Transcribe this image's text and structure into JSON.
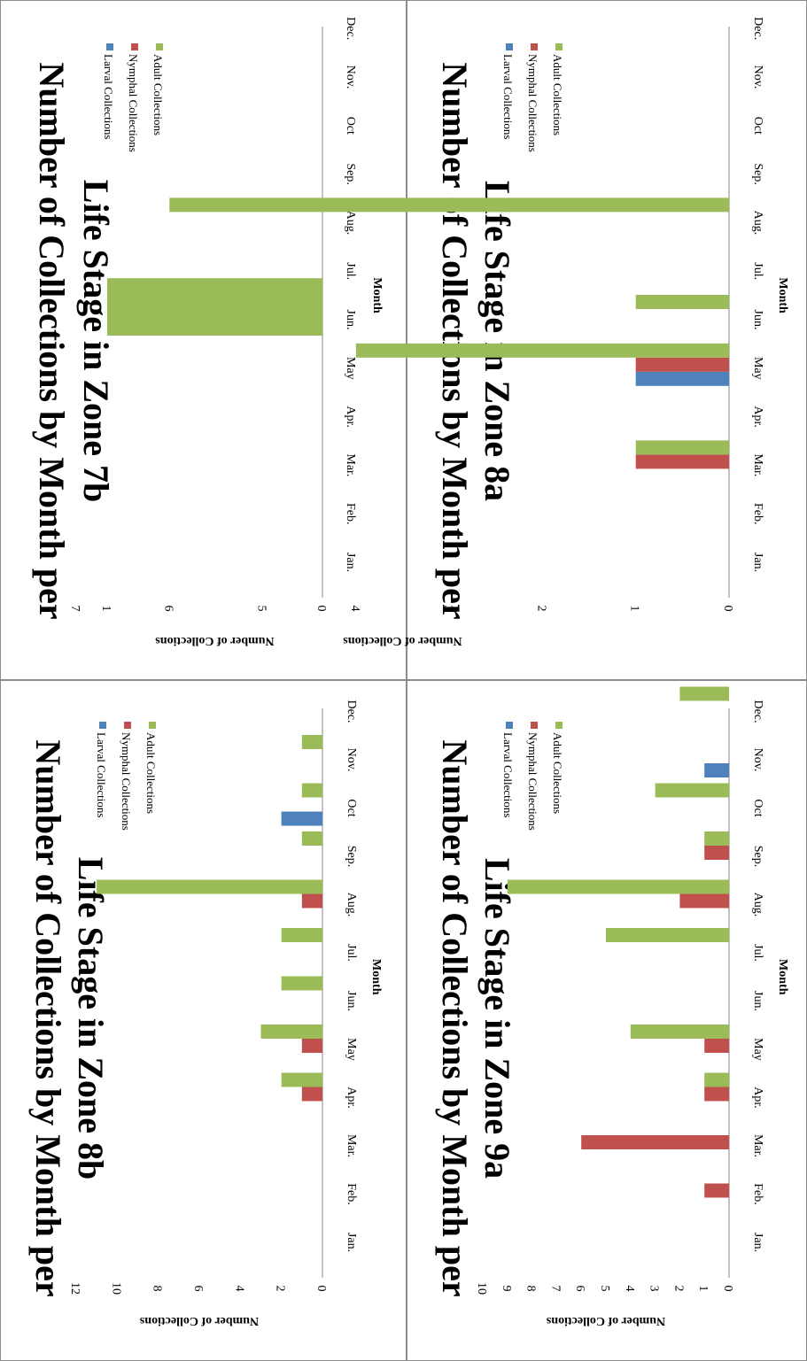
{
  "legend": {
    "larval": "Larval Collections",
    "nymphal": "Nymphal Collections",
    "adult": "Adult Collections"
  },
  "colors": {
    "larval": "#4f81bd",
    "nymphal": "#c0504d",
    "adult": "#9bbb59",
    "axis": "#868686"
  },
  "chart_data": [
    {
      "type": "bar",
      "title_line1": "Number of Collections by Month per",
      "title_line2": "Life Stage in Zone 7b",
      "xlabel": "Month",
      "ylabel": "Number  of Collections",
      "categories": [
        "Jan.",
        "Feb.",
        "Mar.",
        "Apr.",
        "May",
        "Jun.",
        "Jul.",
        "Aug.",
        "Sep.",
        "Oct",
        "Nov.",
        "Dec."
      ],
      "ylim": [
        0,
        1
      ],
      "yticks": [
        0,
        1
      ],
      "orientation": "rotated-90",
      "series": [
        {
          "name": "Larval Collections",
          "values": [
            0,
            0,
            0,
            0,
            0,
            0,
            0,
            0,
            0,
            0,
            0,
            0
          ]
        },
        {
          "name": "Nymphal Collections",
          "values": [
            0,
            0,
            0,
            0,
            0,
            0,
            0,
            0,
            0,
            0,
            0,
            0
          ]
        },
        {
          "name": "Adult Collections",
          "values": [
            0,
            0,
            0,
            0,
            0,
            1,
            1,
            0,
            0,
            0,
            0,
            0
          ]
        }
      ]
    },
    {
      "type": "bar",
      "title_line1": "Number of Collections by Month per",
      "title_line2": "Life Stage in Zone 8a",
      "xlabel": "Month",
      "ylabel": "Number  of Collections",
      "categories": [
        "Jan.",
        "Feb.",
        "Mar.",
        "Apr.",
        "May",
        "Jun.",
        "Jul.",
        "Aug.",
        "Sep.",
        "Oct",
        "Nov.",
        "Dec."
      ],
      "ylim": [
        0,
        7
      ],
      "yticks": [
        0,
        1,
        2,
        3,
        4,
        5,
        6,
        7
      ],
      "orientation": "rotated-90",
      "series": [
        {
          "name": "Larval Collections",
          "values": [
            0,
            0,
            0,
            0,
            1,
            0,
            0,
            0,
            0,
            0,
            0,
            0
          ]
        },
        {
          "name": "Nymphal Collections",
          "values": [
            0,
            0,
            1,
            0,
            1,
            0,
            0,
            0,
            0,
            0,
            0,
            0
          ]
        },
        {
          "name": "Adult Collections",
          "values": [
            0,
            0,
            1,
            0,
            4,
            1,
            0,
            6,
            0,
            0,
            0,
            0
          ]
        }
      ]
    },
    {
      "type": "bar",
      "title_line1": "Number of Collections by Month per",
      "title_line2": "Life Stage in Zone 8b",
      "xlabel": "Month",
      "ylabel": "Number  of Collections",
      "categories": [
        "Jan.",
        "Feb.",
        "Mar.",
        "Apr.",
        "May",
        "Jun.",
        "Jul.",
        "Aug.",
        "Sep.",
        "Oct",
        "Nov.",
        "Dec."
      ],
      "ylim": [
        0,
        12
      ],
      "yticks": [
        0,
        2,
        4,
        6,
        8,
        10,
        12
      ],
      "orientation": "rotated-90",
      "series": [
        {
          "name": "Larval Collections",
          "values": [
            0,
            0,
            0,
            0,
            0,
            0,
            0,
            0,
            0,
            2,
            0,
            0
          ]
        },
        {
          "name": "Nymphal Collections",
          "values": [
            0,
            0,
            0,
            1,
            1,
            0,
            0,
            1,
            0,
            0,
            0,
            0
          ]
        },
        {
          "name": "Adult Collections",
          "values": [
            0,
            0,
            0,
            2,
            3,
            2,
            2,
            11,
            1,
            1,
            1,
            0
          ]
        }
      ]
    },
    {
      "type": "bar",
      "title_line1": "Number of Collections by Month per",
      "title_line2": "Life Stage in Zone 9a",
      "xlabel": "Month",
      "ylabel": "Number  of Collections",
      "categories": [
        "Jan.",
        "Feb.",
        "Mar.",
        "Apr.",
        "May",
        "Jun.",
        "Jul.",
        "Aug.",
        "Sep.",
        "Oct",
        "Nov.",
        "Dec."
      ],
      "ylim": [
        0,
        10
      ],
      "yticks": [
        0,
        1,
        2,
        3,
        4,
        5,
        6,
        7,
        8,
        9,
        10
      ],
      "orientation": "rotated-90",
      "series": [
        {
          "name": "Larval Collections",
          "values": [
            0,
            0,
            0,
            0,
            0,
            0,
            0,
            0,
            0,
            0,
            1,
            0
          ]
        },
        {
          "name": "Nymphal Collections",
          "values": [
            0,
            1,
            6,
            1,
            1,
            0,
            0,
            2,
            1,
            0,
            0,
            0
          ]
        },
        {
          "name": "Adult Collections",
          "values": [
            0,
            0,
            0,
            1,
            4,
            0,
            5,
            9,
            1,
            3,
            0,
            2
          ]
        }
      ]
    }
  ]
}
